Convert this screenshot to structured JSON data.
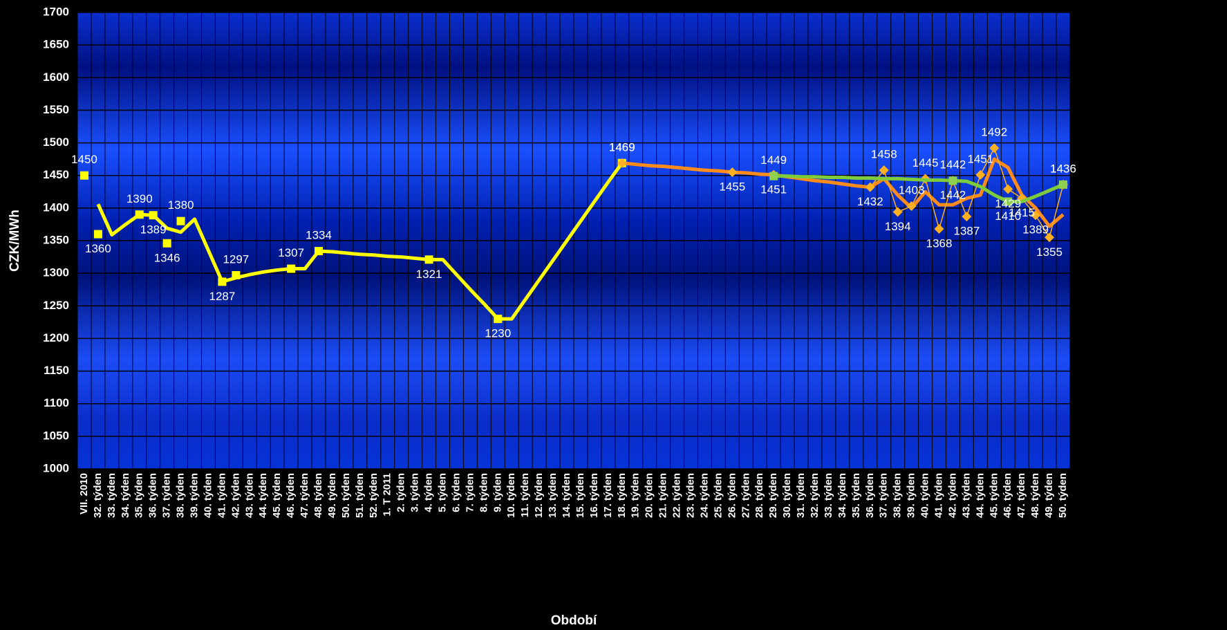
{
  "chart_data": {
    "type": "line",
    "ylabel": "CZK/MWh",
    "xlabel": "Období",
    "categories": [
      "VII. 2010",
      "32. týden",
      "33. týden",
      "34. týden",
      "35. týden",
      "36. týden",
      "37. týden",
      "38. týden",
      "39. týden",
      "40. týden",
      "41. týden",
      "42. týden",
      "43. týden",
      "44. týden",
      "45. týden",
      "46. týden",
      "47. týden",
      "48. týden",
      "49. týden",
      "50. týden",
      "51. týden",
      "52. týden",
      "1. T 2011",
      "2. týden",
      "3. týden",
      "4. týden",
      "5. týden",
      "6. týden",
      "7. týden",
      "8. týden",
      "9. týden",
      "10. týden",
      "11. týden",
      "12. týden",
      "13. týden",
      "14. týden",
      "15. týden",
      "16. týden",
      "17. týden",
      "18. týden",
      "19. týden",
      "20. týden",
      "21. týden",
      "22. týden",
      "23. týden",
      "24. týden",
      "25. týden",
      "26. týden",
      "27. týden",
      "28. týden",
      "29. týden",
      "30. týden",
      "31. týden",
      "32. týden",
      "33. týden",
      "34. týden",
      "35. týden",
      "36. týden",
      "37. týden",
      "38. týden",
      "39. týden",
      "40. týden",
      "41. týden",
      "42. týden",
      "43. týden",
      "44. týden",
      "45. týden",
      "46. týden",
      "47. týden",
      "48. týden",
      "49. týden",
      "50. týden"
    ],
    "ylim": [
      1000,
      1700
    ],
    "yticks": [
      1000,
      1050,
      1100,
      1150,
      1200,
      1250,
      1300,
      1350,
      1400,
      1450,
      1500,
      1550,
      1600,
      1650,
      1700
    ],
    "grid": true,
    "series": [
      {
        "color": "#ffff00",
        "line": "thick",
        "marker": "none",
        "data_labels": false,
        "values": [
          null,
          1406,
          1359,
          1375,
          1390,
          1389,
          1369,
          1363,
          1383,
          1335,
          1287,
          1293,
          1298,
          1302,
          1305,
          1307,
          1307,
          1334,
          1333,
          1331,
          1329,
          1328,
          1326,
          1325,
          1323,
          1321,
          1321,
          1298,
          1275,
          1253,
          1230,
          1230,
          1260,
          1290,
          1320,
          1350,
          1380,
          1410,
          1440,
          1469,
          null,
          null,
          null,
          null,
          null,
          null,
          null,
          null,
          null,
          null,
          null,
          null,
          null,
          null,
          null,
          null,
          null,
          null,
          null,
          null,
          null,
          null,
          null,
          null,
          null,
          null,
          null,
          null,
          null,
          null,
          null,
          null
        ]
      },
      {
        "color": "#ffff00",
        "line": "none",
        "marker": "square",
        "data_labels": true,
        "values": [
          1450,
          1360,
          null,
          null,
          1390,
          1389,
          1346,
          1380,
          null,
          null,
          1287,
          1297,
          null,
          null,
          null,
          1307,
          null,
          1334,
          null,
          null,
          null,
          null,
          null,
          null,
          null,
          1321,
          null,
          null,
          null,
          null,
          1230,
          null,
          null,
          null,
          null,
          null,
          null,
          null,
          null,
          1469,
          null,
          null,
          null,
          null,
          null,
          null,
          null,
          null,
          null,
          null,
          null,
          null,
          null,
          null,
          null,
          null,
          null,
          null,
          null,
          null,
          null,
          null,
          null,
          null,
          null,
          null,
          null,
          null,
          null,
          null,
          null,
          null
        ]
      },
      {
        "color": "#ff8c1a",
        "line": "thick",
        "marker": "none",
        "data_labels": false,
        "values": [
          null,
          null,
          null,
          null,
          null,
          null,
          null,
          null,
          null,
          null,
          null,
          null,
          null,
          null,
          null,
          null,
          null,
          null,
          null,
          null,
          null,
          null,
          null,
          null,
          null,
          null,
          null,
          null,
          null,
          null,
          null,
          null,
          null,
          null,
          null,
          null,
          null,
          null,
          null,
          1469,
          1467,
          1465,
          1464,
          1462,
          1460,
          1458,
          1457,
          1455,
          1454,
          1452,
          1451,
          1448,
          1445,
          1442,
          1440,
          1437,
          1434,
          1432,
          1445,
          1420,
          1400,
          1425,
          1405,
          1405,
          1415,
          1420,
          1475,
          1462,
          1420,
          1400,
          1372,
          1390
        ]
      },
      {
        "color": "#ffb020",
        "line": "thin",
        "marker": "diamond",
        "data_labels": true,
        "values": [
          null,
          null,
          null,
          null,
          null,
          null,
          null,
          null,
          null,
          null,
          null,
          null,
          null,
          null,
          null,
          null,
          null,
          null,
          null,
          null,
          null,
          null,
          null,
          null,
          null,
          null,
          null,
          null,
          null,
          null,
          null,
          null,
          null,
          null,
          null,
          null,
          null,
          null,
          null,
          1469,
          null,
          null,
          null,
          null,
          null,
          null,
          null,
          1455,
          null,
          null,
          1451,
          null,
          null,
          null,
          null,
          null,
          null,
          1432,
          1458,
          1394,
          1403,
          1445,
          1368,
          1442,
          1387,
          1451,
          1492,
          1429,
          1415,
          1389,
          1355,
          1436
        ]
      },
      {
        "color": "#7fcc3a",
        "line": "thick",
        "marker": "none",
        "data_labels": false,
        "values": [
          null,
          null,
          null,
          null,
          null,
          null,
          null,
          null,
          null,
          null,
          null,
          null,
          null,
          null,
          null,
          null,
          null,
          null,
          null,
          null,
          null,
          null,
          null,
          null,
          null,
          null,
          null,
          null,
          null,
          null,
          null,
          null,
          null,
          null,
          null,
          null,
          null,
          null,
          null,
          null,
          null,
          null,
          null,
          null,
          null,
          null,
          null,
          null,
          null,
          null,
          1449,
          1449,
          1448,
          1448,
          1447,
          1447,
          1446,
          1446,
          1445,
          1445,
          1444,
          1443,
          1443,
          1442,
          1441,
          1433,
          1420,
          1410,
          1410,
          1418,
          1427,
          1436
        ]
      },
      {
        "color": "#8fd14f",
        "line": "none",
        "marker": "square",
        "data_labels": true,
        "values": [
          null,
          null,
          null,
          null,
          null,
          null,
          null,
          null,
          null,
          null,
          null,
          null,
          null,
          null,
          null,
          null,
          null,
          null,
          null,
          null,
          null,
          null,
          null,
          null,
          null,
          null,
          null,
          null,
          null,
          null,
          null,
          null,
          null,
          null,
          null,
          null,
          null,
          null,
          null,
          null,
          null,
          null,
          null,
          null,
          null,
          null,
          null,
          null,
          null,
          null,
          1449,
          null,
          null,
          null,
          null,
          null,
          null,
          null,
          null,
          null,
          null,
          null,
          null,
          1442,
          null,
          null,
          null,
          1410,
          null,
          null,
          null,
          1436
        ]
      }
    ]
  }
}
